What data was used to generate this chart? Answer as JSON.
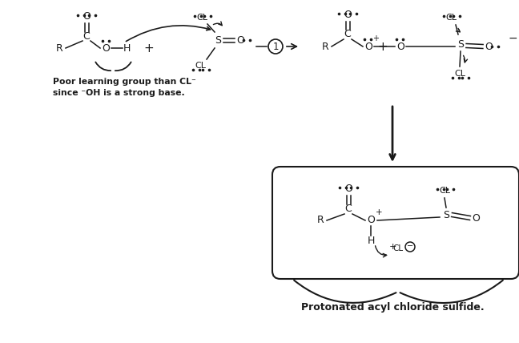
{
  "bg_color": "#ffffff",
  "text_color": "#1a1a1a",
  "annotation_line1": "Poor learning group than CL⁻",
  "annotation_line2": "since ⁻OH is a strong base.",
  "bottom_label": "Protonated acyl chloride sulfide.",
  "figsize": [
    6.48,
    4.28
  ],
  "dpi": 100
}
